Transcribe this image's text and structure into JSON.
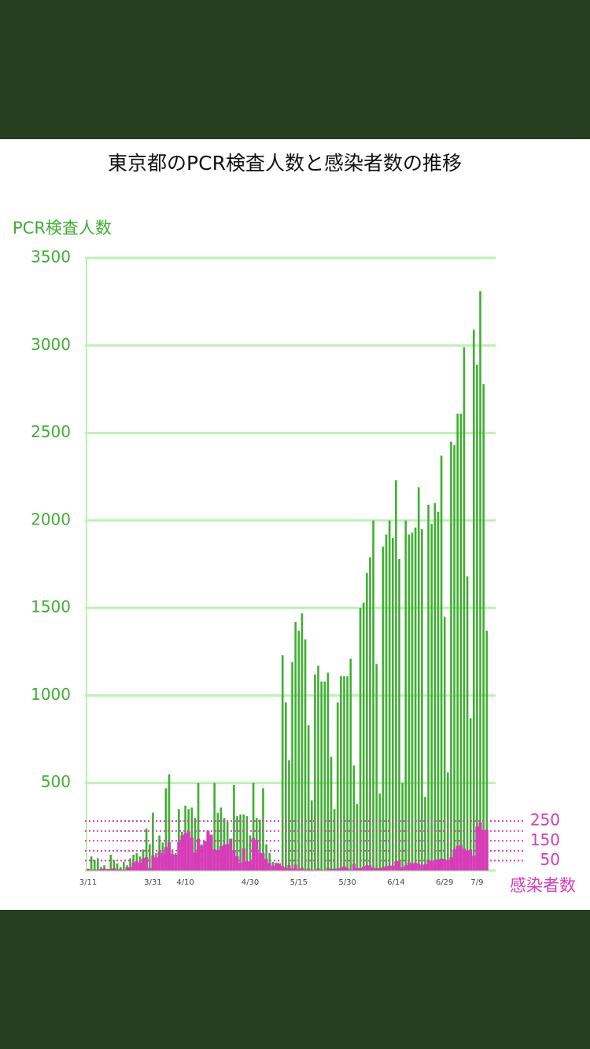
{
  "chart_data": {
    "type": "bar",
    "title": "東京都のPCR検査人数と感染者数の推移",
    "ylabel": "PCR検査人数",
    "y2label": "感染者数",
    "categories": [
      "3/11",
      null,
      null,
      null,
      null,
      null,
      null,
      null,
      null,
      null,
      null,
      null,
      null,
      null,
      null,
      null,
      null,
      null,
      null,
      null,
      "3/31",
      null,
      null,
      null,
      null,
      null,
      null,
      null,
      null,
      null,
      "4/10",
      null,
      null,
      null,
      null,
      null,
      null,
      null,
      null,
      null,
      null,
      null,
      null,
      null,
      null,
      null,
      null,
      null,
      null,
      null,
      "4/30",
      null,
      null,
      null,
      null,
      null,
      null,
      null,
      null,
      null,
      null,
      null,
      null,
      null,
      null,
      "5/15",
      null,
      null,
      null,
      null,
      null,
      null,
      null,
      null,
      null,
      null,
      null,
      null,
      null,
      null,
      "5/30",
      null,
      null,
      null,
      null,
      null,
      null,
      null,
      null,
      null,
      null,
      null,
      null,
      null,
      null,
      "6/14",
      null,
      null,
      null,
      null,
      null,
      null,
      null,
      null,
      null,
      null,
      null,
      null,
      null,
      null,
      "6/29",
      null,
      null,
      null,
      null,
      null,
      null,
      null,
      null,
      null,
      "7/9",
      null,
      null,
      null
    ],
    "series": [
      {
        "color": "#3fae32",
        "values": [
          10,
          80,
          60,
          70,
          20,
          30,
          10,
          90,
          60,
          40,
          20,
          50,
          30,
          70,
          90,
          100,
          80,
          120,
          240,
          150,
          330,
          100,
          200,
          160,
          470,
          550,
          120,
          100,
          350,
          220,
          370,
          350,
          360,
          300,
          500,
          150,
          140,
          180,
          120,
          500,
          330,
          360,
          300,
          280,
          150,
          490,
          310,
          320,
          320,
          310,
          200,
          500,
          300,
          290,
          470,
          150,
          100,
          50,
          30,
          20,
          1230,
          960,
          630,
          1190,
          1420,
          1370,
          1470,
          1320,
          830,
          400,
          1120,
          1170,
          1080,
          1080,
          1130,
          650,
          350,
          960,
          1110,
          1110,
          1110,
          1210,
          600,
          380,
          1500,
          1530,
          1700,
          1790,
          2000,
          1180,
          440,
          1850,
          1920,
          2000,
          1900,
          2230,
          1780,
          500,
          2000,
          1920,
          1930,
          1960,
          2190,
          1950,
          420,
          2090,
          1980,
          2100,
          2050,
          2370,
          1450,
          560,
          2450,
          2430,
          2610,
          2610,
          2990,
          1680,
          870,
          3090,
          2890,
          3310,
          2780,
          1370
        ]
      },
      {
        "color": "#d63cb8",
        "axis": "y2",
        "values": [
          7,
          3,
          5,
          4,
          8,
          10,
          6,
          8,
          12,
          5,
          7,
          3,
          16,
          17,
          41,
          47,
          40,
          63,
          68,
          13,
          78,
          66,
          97,
          89,
          118,
          143,
          83,
          80,
          144,
          178,
          189,
          197,
          166,
          91,
          161,
          127,
          149,
          201,
          181,
          107,
          102,
          123,
          132,
          134,
          161,
          103,
          72,
          39,
          112,
          47,
          46,
          165,
          154,
          91,
          87,
          58,
          38,
          23,
          39,
          36,
          22,
          15,
          28,
          10,
          30,
          9,
          14,
          5,
          10,
          5,
          3,
          11,
          3,
          2,
          14,
          8,
          10,
          11,
          15,
          22,
          14,
          5,
          34,
          13,
          12,
          20,
          28,
          26,
          14,
          13,
          12,
          18,
          22,
          25,
          24,
          47,
          48,
          16,
          27,
          41,
          35,
          39,
          35,
          29,
          31,
          55,
          48,
          54,
          57,
          60,
          58,
          54,
          67,
          107,
          124,
          131,
          111,
          102,
          106,
          75,
          224,
          243,
          206,
          206
        ]
      }
    ],
    "ylim": [
      0,
      3500
    ],
    "yticks": [
      500,
      1000,
      1500,
      2000,
      2500,
      3000,
      3500
    ],
    "y2lim": [
      0,
      3100
    ],
    "y2ticks": [
      50,
      150,
      250
    ],
    "y2_minor_gridlines": [
      100,
      200
    ],
    "grid": true
  }
}
